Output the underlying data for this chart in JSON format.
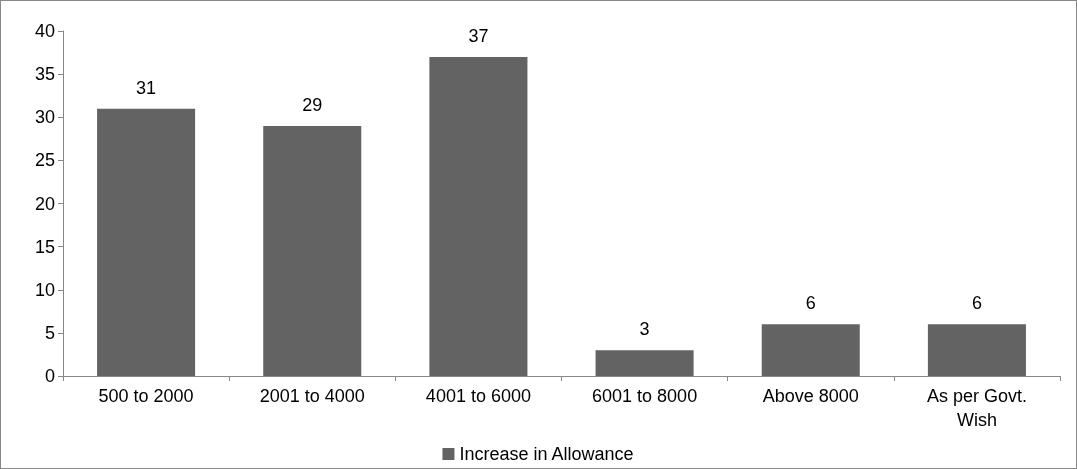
{
  "chart_data": {
    "type": "bar",
    "categories": [
      "500 to 2000",
      "2001 to 4000",
      "4001 to 6000",
      "6001 to 8000",
      "Above 8000",
      "As per Govt.\nWish"
    ],
    "series": [
      {
        "name": "Increase in Allowance",
        "color": "#636363",
        "values": [
          31,
          29,
          37,
          3,
          6,
          6
        ]
      }
    ],
    "ylim": [
      0,
      40
    ],
    "yticks": [
      0,
      5,
      10,
      15,
      20,
      25,
      30,
      35,
      40
    ],
    "data_labels": true,
    "grid": false,
    "legend": "bottom"
  }
}
